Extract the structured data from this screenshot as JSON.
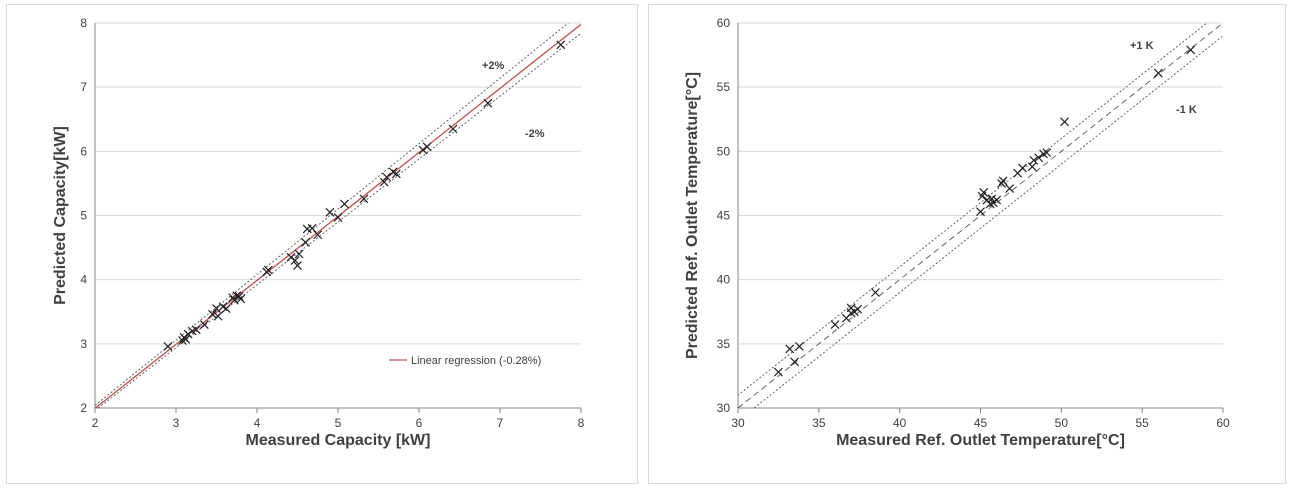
{
  "chart_data": [
    {
      "type": "scatter",
      "xlabel": "Measured Capacity [kW]",
      "ylabel": "Predicted Capacity[kW]",
      "xlim": [
        2,
        8
      ],
      "ylim": [
        2,
        8
      ],
      "xticks": [
        "2",
        "3",
        "4",
        "5",
        "6",
        "7",
        "8"
      ],
      "yticks": [
        "2",
        "3",
        "4",
        "5",
        "6",
        "7",
        "8"
      ],
      "grid": "horizontal",
      "marker": "x",
      "annotations": [
        "+2%",
        "-2%"
      ],
      "legend": {
        "position": "bottom-right",
        "entries": [
          "Linear regression (-0.28%)"
        ]
      },
      "points": [
        [
          2.9,
          2.96
        ],
        [
          3.08,
          3.05
        ],
        [
          3.1,
          3.1
        ],
        [
          3.12,
          3.07
        ],
        [
          3.15,
          3.15
        ],
        [
          3.2,
          3.2
        ],
        [
          3.25,
          3.22
        ],
        [
          3.35,
          3.3
        ],
        [
          3.45,
          3.46
        ],
        [
          3.5,
          3.55
        ],
        [
          3.52,
          3.43
        ],
        [
          3.58,
          3.58
        ],
        [
          3.62,
          3.55
        ],
        [
          3.7,
          3.72
        ],
        [
          3.72,
          3.68
        ],
        [
          3.75,
          3.75
        ],
        [
          3.78,
          3.74
        ],
        [
          3.8,
          3.7
        ],
        [
          4.12,
          4.12
        ],
        [
          4.14,
          4.15
        ],
        [
          4.42,
          4.35
        ],
        [
          4.47,
          4.3
        ],
        [
          4.5,
          4.22
        ],
        [
          4.52,
          4.4
        ],
        [
          4.6,
          4.58
        ],
        [
          4.62,
          4.79
        ],
        [
          4.68,
          4.8
        ],
        [
          4.75,
          4.7
        ],
        [
          4.9,
          5.05
        ],
        [
          5.0,
          4.97
        ],
        [
          5.08,
          5.18
        ],
        [
          5.32,
          5.26
        ],
        [
          5.57,
          5.52
        ],
        [
          5.6,
          5.6
        ],
        [
          5.68,
          5.68
        ],
        [
          5.72,
          5.65
        ],
        [
          6.05,
          6.02
        ],
        [
          6.1,
          6.07
        ],
        [
          6.42,
          6.35
        ],
        [
          6.85,
          6.75
        ],
        [
          7.75,
          7.66
        ]
      ],
      "regression_slope": 0.9972
    },
    {
      "type": "scatter",
      "xlabel": "Measured Ref. Outlet Temperature[°C]",
      "ylabel": "Predicted Ref. Outlet Temperature[°C]",
      "xlim": [
        30,
        60
      ],
      "ylim": [
        30,
        60
      ],
      "xticks": [
        "30",
        "35",
        "40",
        "45",
        "50",
        "55",
        "60"
      ],
      "yticks": [
        "30",
        "35",
        "40",
        "45",
        "50",
        "55",
        "60"
      ],
      "grid": "horizontal",
      "marker": "x",
      "annotations": [
        "+1 K",
        "-1 K"
      ],
      "points": [
        [
          32.5,
          32.8
        ],
        [
          33.2,
          34.6
        ],
        [
          33.5,
          33.6
        ],
        [
          33.8,
          34.8
        ],
        [
          36.0,
          36.5
        ],
        [
          36.7,
          37.0
        ],
        [
          37.0,
          37.4
        ],
        [
          37.0,
          37.8
        ],
        [
          37.2,
          37.5
        ],
        [
          37.4,
          37.7
        ],
        [
          38.5,
          39.0
        ],
        [
          45.0,
          45.3
        ],
        [
          45.1,
          46.5
        ],
        [
          45.2,
          46.8
        ],
        [
          45.4,
          46.2
        ],
        [
          45.6,
          45.9
        ],
        [
          45.7,
          46.3
        ],
        [
          45.8,
          46.0
        ],
        [
          46.0,
          46.2
        ],
        [
          46.3,
          47.5
        ],
        [
          46.4,
          47.7
        ],
        [
          46.8,
          47.1
        ],
        [
          47.3,
          48.3
        ],
        [
          47.6,
          48.7
        ],
        [
          48.2,
          48.8
        ],
        [
          48.3,
          49.3
        ],
        [
          48.6,
          49.5
        ],
        [
          48.9,
          49.8
        ],
        [
          49.1,
          49.9
        ],
        [
          50.2,
          52.3
        ],
        [
          56.0,
          56.1
        ],
        [
          58.0,
          57.9
        ]
      ]
    }
  ]
}
